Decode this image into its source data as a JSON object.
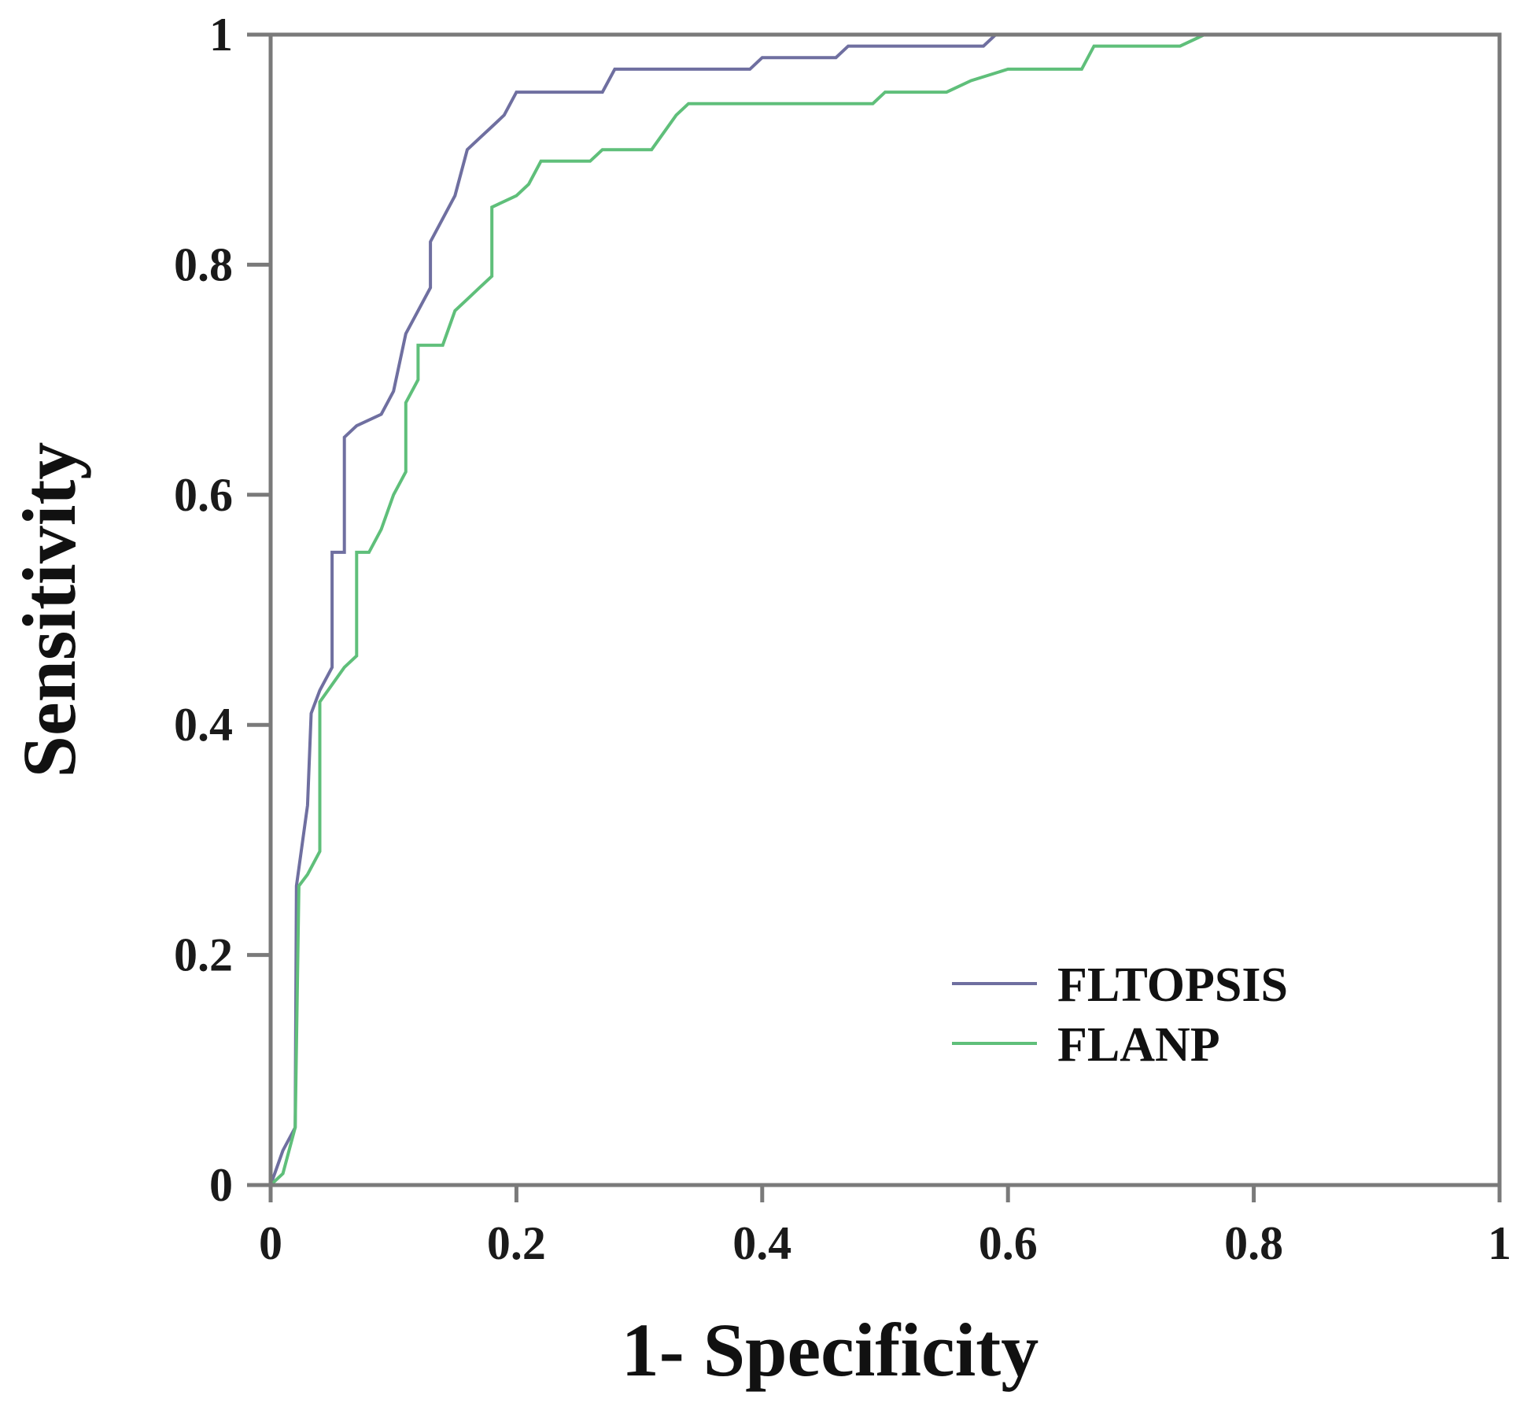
{
  "chart_data": {
    "type": "line",
    "title": "",
    "xlabel": "1- Specificity",
    "ylabel": "Sensitivity",
    "xlim": [
      0,
      1
    ],
    "ylim": [
      0,
      1
    ],
    "xticks": [
      0,
      0.2,
      0.4,
      0.6,
      0.8,
      1
    ],
    "yticks": [
      0,
      0.2,
      0.4,
      0.6,
      0.8,
      1
    ],
    "xtick_labels": [
      "0",
      "0.2",
      "0.4",
      "0.6",
      "0.8",
      "1"
    ],
    "ytick_labels": [
      "0",
      "0.2",
      "0.4",
      "0.6",
      "0.8",
      "1"
    ],
    "grid": false,
    "legend": "bottom-right",
    "series": [
      {
        "name": "FLTOPSIS",
        "color": "#6f6fa0",
        "points": [
          [
            0,
            0
          ],
          [
            0.01,
            0.03
          ],
          [
            0.02,
            0.05
          ],
          [
            0.021,
            0.26
          ],
          [
            0.03,
            0.33
          ],
          [
            0.033,
            0.41
          ],
          [
            0.04,
            0.43
          ],
          [
            0.05,
            0.45
          ],
          [
            0.05,
            0.55
          ],
          [
            0.06,
            0.55
          ],
          [
            0.06,
            0.65
          ],
          [
            0.07,
            0.66
          ],
          [
            0.09,
            0.67
          ],
          [
            0.1,
            0.69
          ],
          [
            0.11,
            0.74
          ],
          [
            0.12,
            0.76
          ],
          [
            0.13,
            0.78
          ],
          [
            0.13,
            0.82
          ],
          [
            0.14,
            0.84
          ],
          [
            0.15,
            0.86
          ],
          [
            0.16,
            0.9
          ],
          [
            0.17,
            0.91
          ],
          [
            0.18,
            0.92
          ],
          [
            0.19,
            0.93
          ],
          [
            0.2,
            0.95
          ],
          [
            0.27,
            0.95
          ],
          [
            0.28,
            0.97
          ],
          [
            0.39,
            0.97
          ],
          [
            0.4,
            0.98
          ],
          [
            0.46,
            0.98
          ],
          [
            0.47,
            0.99
          ],
          [
            0.58,
            0.99
          ],
          [
            0.59,
            1.0
          ],
          [
            1.0,
            1.0
          ]
        ]
      },
      {
        "name": "FLANP",
        "color": "#5fbf7a",
        "points": [
          [
            0,
            0
          ],
          [
            0.01,
            0.01
          ],
          [
            0.02,
            0.05
          ],
          [
            0.023,
            0.26
          ],
          [
            0.03,
            0.27
          ],
          [
            0.04,
            0.29
          ],
          [
            0.04,
            0.42
          ],
          [
            0.06,
            0.45
          ],
          [
            0.07,
            0.46
          ],
          [
            0.07,
            0.55
          ],
          [
            0.08,
            0.55
          ],
          [
            0.09,
            0.57
          ],
          [
            0.1,
            0.6
          ],
          [
            0.11,
            0.62
          ],
          [
            0.11,
            0.68
          ],
          [
            0.12,
            0.7
          ],
          [
            0.12,
            0.73
          ],
          [
            0.14,
            0.73
          ],
          [
            0.15,
            0.76
          ],
          [
            0.16,
            0.77
          ],
          [
            0.17,
            0.78
          ],
          [
            0.18,
            0.79
          ],
          [
            0.18,
            0.85
          ],
          [
            0.2,
            0.86
          ],
          [
            0.21,
            0.87
          ],
          [
            0.22,
            0.89
          ],
          [
            0.26,
            0.89
          ],
          [
            0.27,
            0.9
          ],
          [
            0.31,
            0.9
          ],
          [
            0.33,
            0.93
          ],
          [
            0.34,
            0.94
          ],
          [
            0.49,
            0.94
          ],
          [
            0.5,
            0.95
          ],
          [
            0.55,
            0.95
          ],
          [
            0.57,
            0.96
          ],
          [
            0.6,
            0.97
          ],
          [
            0.66,
            0.97
          ],
          [
            0.67,
            0.99
          ],
          [
            0.74,
            0.99
          ],
          [
            0.76,
            1.0
          ],
          [
            1.0,
            1.0
          ]
        ]
      }
    ]
  }
}
